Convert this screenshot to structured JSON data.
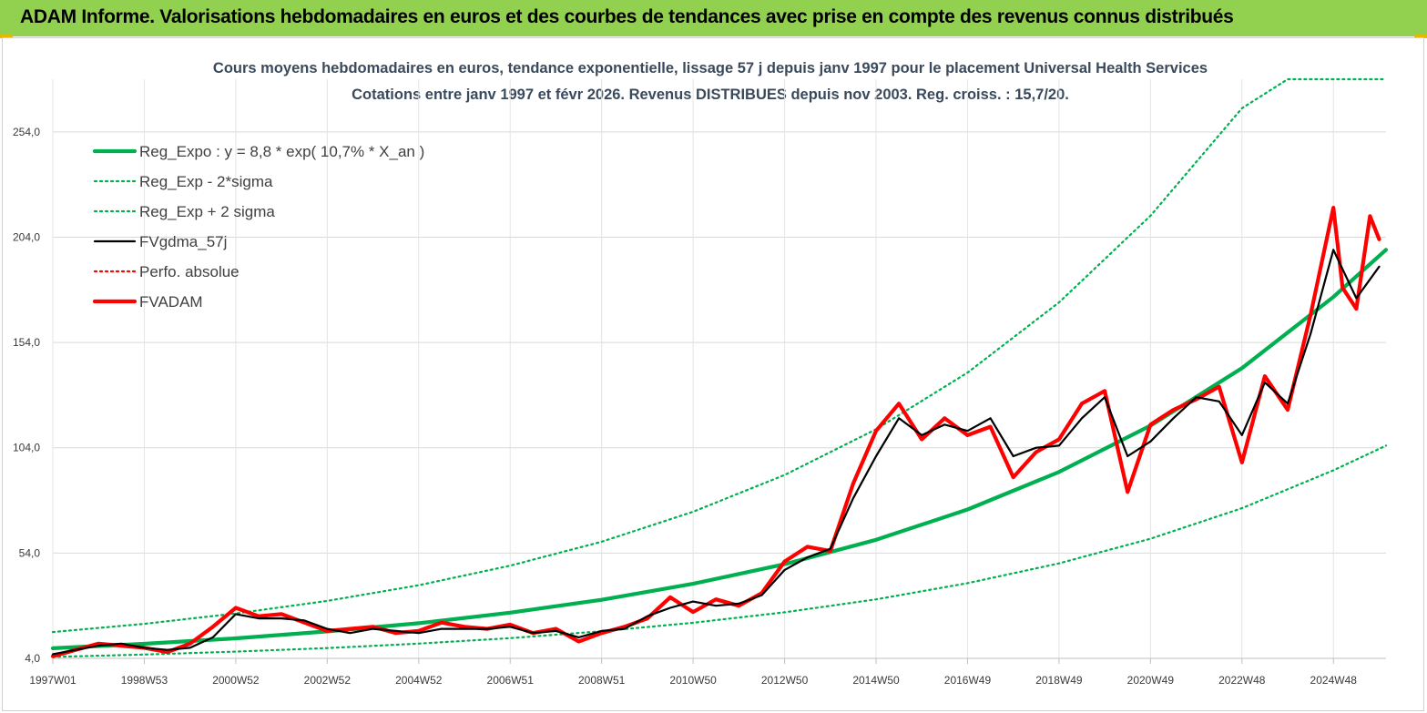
{
  "header": {
    "banner_title": "ADAM Informe. Valorisations hebdomadaires en euros et des courbes de tendances avec prise en compte des revenus connus distribués",
    "banner_color": "#92d050"
  },
  "chart_data": {
    "type": "line",
    "title": "Cours moyens hebdomadaires en euros, tendance exponentielle, lissage 57 j depuis janv 1997 pour le placement Universal Health Services",
    "subtitle": "Cotations entre janv 1997 et févr 2026. Revenus DISTRIBUES depuis nov 2003. Reg. croiss. : 15,7/20.",
    "xlabel": "",
    "ylabel": "",
    "xlim": [
      1997.0,
      2026.15
    ],
    "ylim": [
      4,
      279
    ],
    "yticks": [
      4,
      54,
      104,
      154,
      204,
      254
    ],
    "ytick_labels": [
      "4,0",
      "54,0",
      "104,0",
      "154,0",
      "204,0",
      "254,0"
    ],
    "xticks": [
      {
        "label": "1997W01",
        "year": 1997.0
      },
      {
        "label": "1998W53",
        "year": 1999.0
      },
      {
        "label": "2000W52",
        "year": 2001.0
      },
      {
        "label": "2002W52",
        "year": 2003.0
      },
      {
        "label": "2004W52",
        "year": 2005.0
      },
      {
        "label": "2006W51",
        "year": 2007.0
      },
      {
        "label": "2008W51",
        "year": 2009.0
      },
      {
        "label": "2010W50",
        "year": 2011.0
      },
      {
        "label": "2012W50",
        "year": 2013.0
      },
      {
        "label": "2014W50",
        "year": 2015.0
      },
      {
        "label": "2016W49",
        "year": 2017.0
      },
      {
        "label": "2018W49",
        "year": 2019.0
      },
      {
        "label": "2020W49",
        "year": 2021.0
      },
      {
        "label": "2022W48",
        "year": 2023.0
      },
      {
        "label": "2024W48",
        "year": 2025.0
      }
    ],
    "grid": true,
    "legend_position": "top-left",
    "series": [
      {
        "name": "Reg_Expo : y = 8,8 * exp( 10,7% *  X_an )",
        "color": "#00b050",
        "style": "solid-thick",
        "x": [
          1997,
          1999,
          2001,
          2003,
          2005,
          2007,
          2009,
          2011,
          2013,
          2015,
          2017,
          2019,
          2021,
          2023,
          2025,
          2026.15
        ],
        "values": [
          8.8,
          10.9,
          13.5,
          16.8,
          20.7,
          25.7,
          31.8,
          39.4,
          48.7,
          60.3,
          74.7,
          92.5,
          114.5,
          141.8,
          175.6,
          198.0
        ]
      },
      {
        "name": "Reg_Exp - 2*sigma",
        "color": "#00b050",
        "style": "dotted",
        "x": [
          1997,
          1999,
          2001,
          2003,
          2005,
          2007,
          2009,
          2011,
          2013,
          2015,
          2017,
          2019,
          2021,
          2023,
          2025,
          2026.15
        ],
        "values": [
          4.7,
          5.8,
          7.2,
          8.9,
          11.0,
          13.6,
          16.9,
          20.9,
          25.9,
          32.0,
          39.7,
          49.1,
          60.8,
          75.3,
          93.3,
          105.0
        ]
      },
      {
        "name": "Reg_Exp + 2 sigma",
        "color": "#00b050",
        "style": "dotted",
        "x": [
          1997,
          1999,
          2001,
          2003,
          2005,
          2007,
          2009,
          2011,
          2013,
          2015,
          2017,
          2019,
          2021,
          2023,
          2024,
          2024.5,
          2026.15
        ],
        "values": [
          16.5,
          20.4,
          25.3,
          31.3,
          38.7,
          48.0,
          59.4,
          73.6,
          91.1,
          112.8,
          139.7,
          173.0,
          214.2,
          265.2,
          279.0,
          279.0,
          279.0
        ]
      },
      {
        "name": "FVgdma_57j",
        "color": "#000000",
        "style": "solid",
        "x": [
          1997,
          1997.5,
          1998,
          1998.5,
          1999,
          1999.5,
          2000,
          2000.5,
          2001,
          2001.5,
          2002,
          2002.5,
          2003,
          2003.5,
          2004,
          2004.5,
          2005,
          2005.5,
          2006,
          2006.5,
          2007,
          2007.5,
          2008,
          2008.5,
          2009,
          2009.5,
          2010,
          2010.5,
          2011,
          2011.5,
          2012,
          2012.5,
          2013,
          2013.5,
          2014,
          2014.5,
          2015,
          2015.5,
          2016,
          2016.5,
          2017,
          2017.5,
          2018,
          2018.5,
          2019,
          2019.5,
          2020,
          2020.5,
          2021,
          2021.5,
          2022,
          2022.5,
          2023,
          2023.5,
          2024,
          2024.5,
          2025,
          2025.5,
          2026
        ],
        "values": [
          6,
          8,
          10,
          11,
          9,
          8,
          9,
          14,
          25,
          23,
          23,
          22,
          18,
          16,
          18,
          17,
          16,
          18,
          18,
          18,
          19,
          16,
          17,
          14,
          17,
          18,
          24,
          28,
          31,
          29,
          30,
          34,
          46,
          52,
          56,
          80,
          100,
          118,
          110,
          115,
          112,
          118,
          100,
          104,
          105,
          118,
          128,
          100,
          107,
          118,
          128,
          126,
          110,
          135,
          125,
          158,
          198,
          175,
          190
        ]
      },
      {
        "name": "Perfo. absolue",
        "color": "#ff0000",
        "style": "dotted",
        "x": [],
        "values": []
      },
      {
        "name": "FVADAM",
        "color": "#ff0000",
        "style": "solid-thick",
        "x": [
          1997,
          1997.5,
          1998,
          1998.5,
          1999,
          1999.5,
          2000,
          2000.5,
          2001,
          2001.5,
          2002,
          2002.5,
          2003,
          2003.5,
          2004,
          2004.5,
          2005,
          2005.5,
          2006,
          2006.5,
          2007,
          2007.5,
          2008,
          2008.5,
          2009,
          2009.5,
          2010,
          2010.5,
          2011,
          2011.5,
          2012,
          2012.5,
          2013,
          2013.5,
          2014,
          2014.5,
          2015,
          2015.5,
          2016,
          2016.5,
          2017,
          2017.5,
          2018,
          2018.5,
          2019,
          2019.5,
          2020,
          2020.5,
          2021,
          2021.5,
          2022,
          2022.5,
          2023,
          2023.5,
          2024,
          2024.5,
          2025,
          2025.2,
          2025.5,
          2025.8,
          2026
        ],
        "values": [
          5,
          8,
          11,
          10,
          9,
          7,
          11,
          19,
          28,
          24,
          25,
          21,
          17,
          18,
          19,
          16,
          17,
          21,
          19,
          18,
          20,
          16,
          18,
          12,
          16,
          19,
          23,
          33,
          26,
          32,
          29,
          35,
          50,
          57,
          55,
          87,
          112,
          125,
          108,
          118,
          110,
          114,
          90,
          102,
          108,
          125,
          131,
          83,
          115,
          122,
          127,
          133,
          97,
          138,
          122,
          167,
          218,
          180,
          170,
          214,
          203
        ]
      }
    ]
  }
}
